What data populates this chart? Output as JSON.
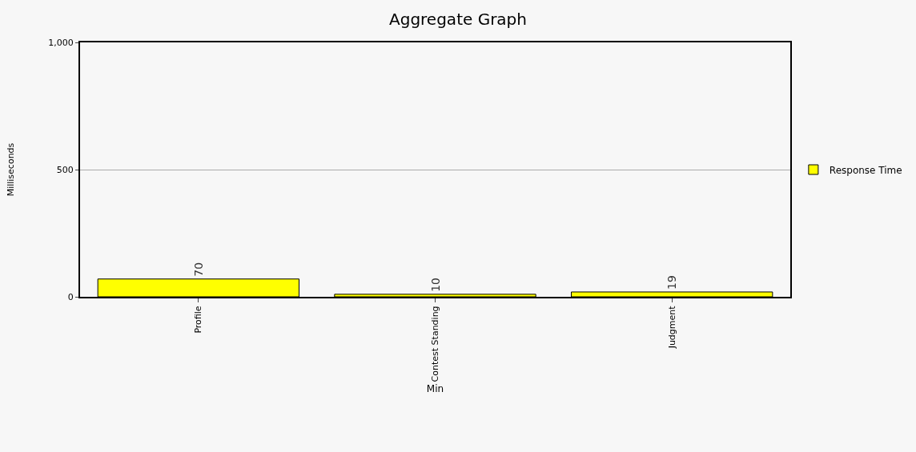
{
  "chart_data": {
    "type": "bar",
    "title": "Aggregate Graph",
    "xlabel": "Min",
    "ylabel": "Milliseconds",
    "categories": [
      "Profile",
      "Contest Standing",
      "Judgment"
    ],
    "series": [
      {
        "name": "Response Time",
        "color": "#ffff00",
        "values": [
          70,
          10,
          19
        ]
      }
    ],
    "ylim": [
      0,
      1000
    ],
    "yticks": [
      0,
      500,
      {
        "value": 1000,
        "label": "1,000"
      }
    ],
    "grid": "y",
    "legend": "right",
    "data_labels": true
  }
}
